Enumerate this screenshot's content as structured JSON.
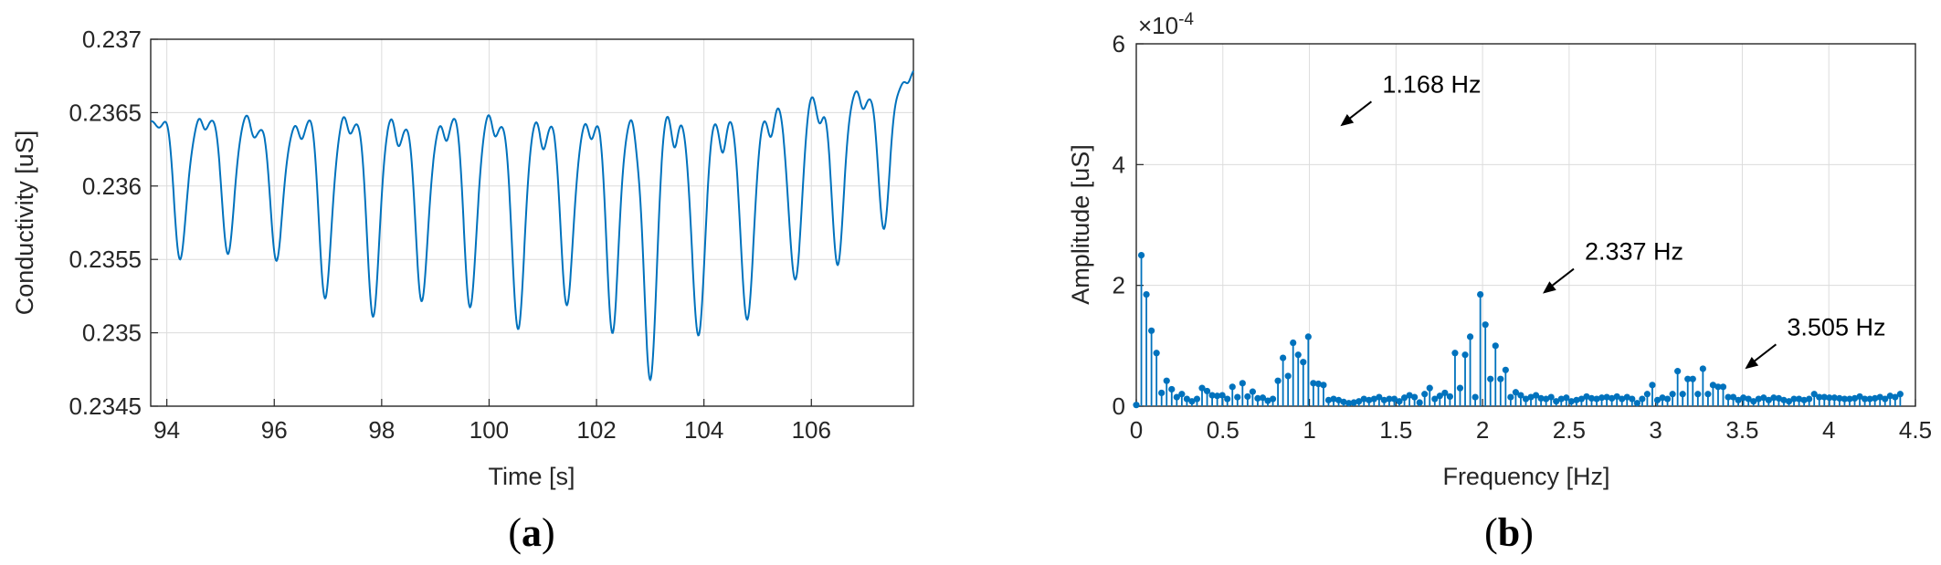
{
  "chart_data": [
    {
      "panel_label": "a",
      "type": "line",
      "xlabel": "Time [s]",
      "ylabel": "Conductivity [uS]",
      "xlim": [
        93.7,
        107.9
      ],
      "ylim": [
        0.2345,
        0.237
      ],
      "xticks": [
        "94",
        "96",
        "98",
        "100",
        "102",
        "104",
        "106"
      ],
      "yticks": [
        "0.2345",
        "0.235",
        "0.2355",
        "0.236",
        "0.2365",
        "0.237"
      ],
      "grid": true,
      "color": "#0072BD",
      "baseline": 0.23645,
      "x_start": 93.7,
      "x_end": 107.9,
      "dips": [
        {
          "t": 94.25,
          "depth": 0.2355
        },
        {
          "t": 95.15,
          "depth": 0.23557
        },
        {
          "t": 96.05,
          "depth": 0.23545
        },
        {
          "t": 96.95,
          "depth": 0.23525
        },
        {
          "t": 97.85,
          "depth": 0.23512
        },
        {
          "t": 98.75,
          "depth": 0.23517
        },
        {
          "t": 99.65,
          "depth": 0.2352
        },
        {
          "t": 100.55,
          "depth": 0.23501
        },
        {
          "t": 101.45,
          "depth": 0.23515
        },
        {
          "t": 102.3,
          "depth": 0.23505
        },
        {
          "t": 103.0,
          "depth": 0.23469
        },
        {
          "t": 103.9,
          "depth": 0.23493
        },
        {
          "t": 104.8,
          "depth": 0.23505
        },
        {
          "t": 105.7,
          "depth": 0.23537
        },
        {
          "t": 106.5,
          "depth": 0.23547
        },
        {
          "t": 107.35,
          "depth": 0.2357
        }
      ]
    },
    {
      "panel_label": "b",
      "type": "stem",
      "xlabel": "Frequency [Hz]",
      "ylabel": "Amplitude [uS]",
      "xlim": [
        0,
        4.5
      ],
      "ylim": [
        0,
        6
      ],
      "y_exponent": "-4",
      "xticks": [
        "0",
        "0.5",
        "1",
        "1.5",
        "2",
        "2.5",
        "3",
        "3.5",
        "4",
        "4.5"
      ],
      "yticks": [
        "0",
        "2",
        "4",
        "6"
      ],
      "grid": true,
      "color": "#0072BD",
      "step": 0.02922,
      "amplitudes": [
        0.02,
        2.5,
        1.85,
        1.25,
        0.88,
        0.22,
        0.42,
        0.28,
        0.15,
        0.2,
        0.12,
        0.08,
        0.12,
        0.3,
        0.25,
        0.18,
        0.17,
        0.18,
        0.12,
        0.32,
        0.15,
        0.38,
        0.16,
        0.24,
        0.13,
        0.14,
        0.09,
        0.12,
        0.42,
        0.8,
        0.5,
        1.05,
        0.85,
        0.73,
        1.15,
        0.38,
        0.37,
        0.35,
        0.1,
        0.12,
        0.1,
        0.07,
        0.05,
        0.06,
        0.08,
        0.12,
        0.1,
        0.12,
        0.15,
        0.1,
        0.12,
        0.12,
        0.08,
        0.14,
        0.18,
        0.15,
        0.06,
        0.2,
        0.3,
        0.12,
        0.17,
        0.22,
        0.16,
        0.88,
        0.3,
        0.85,
        1.15,
        0.15,
        1.85,
        1.35,
        0.45,
        1.0,
        0.45,
        0.6,
        0.15,
        0.23,
        0.18,
        0.12,
        0.15,
        0.18,
        0.13,
        0.12,
        0.15,
        0.08,
        0.12,
        0.14,
        0.08,
        0.1,
        0.12,
        0.16,
        0.13,
        0.12,
        0.14,
        0.15,
        0.13,
        0.16,
        0.12,
        0.15,
        0.12,
        0.05,
        0.12,
        0.2,
        0.35,
        0.1,
        0.14,
        0.12,
        0.2,
        0.58,
        0.2,
        0.45,
        0.45,
        0.2,
        0.62,
        0.2,
        0.35,
        0.32,
        0.32,
        0.15,
        0.15,
        0.1,
        0.14,
        0.12,
        0.08,
        0.12,
        0.14,
        0.1,
        0.14,
        0.13,
        0.1,
        0.08,
        0.12,
        0.12,
        0.1,
        0.12,
        0.2,
        0.15,
        0.15,
        0.14,
        0.14,
        0.13,
        0.12,
        0.12,
        0.13,
        0.16,
        0.12,
        0.12,
        0.13,
        0.15,
        0.12,
        0.17,
        0.15,
        0.2
      ],
      "annotations": [
        {
          "text": "1.168 Hz",
          "x": 1.168,
          "y": 4.62
        },
        {
          "text": "2.337 Hz",
          "x": 2.337,
          "y": 1.85
        },
        {
          "text": "3.505 Hz",
          "x": 3.505,
          "y": 0.6
        }
      ]
    }
  ]
}
